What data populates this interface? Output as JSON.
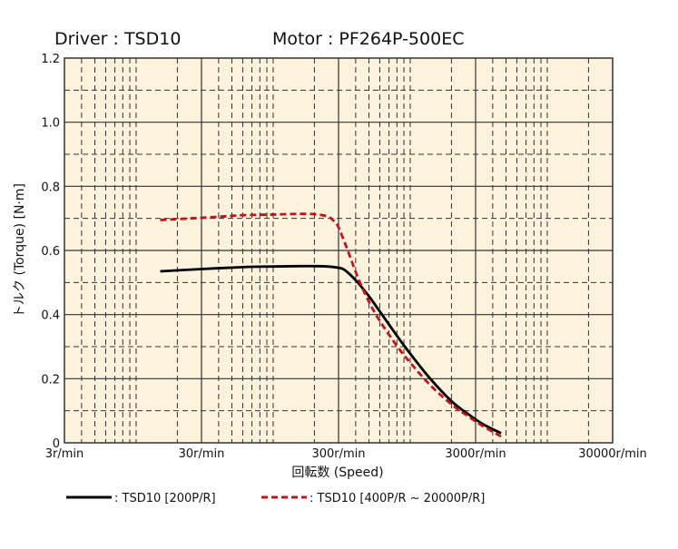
{
  "header": {
    "driver_text": "Driver : TSD10",
    "motor_text": "Motor : PF264P-500EC"
  },
  "chart_data": {
    "type": "line",
    "xscale": "log",
    "xlim": [
      3,
      30000
    ],
    "ylim": [
      0,
      1.2
    ],
    "xticks": [
      {
        "value": 3,
        "label": "3r/min"
      },
      {
        "value": 30,
        "label": "30r/min"
      },
      {
        "value": 300,
        "label": "300r/min"
      },
      {
        "value": 3000,
        "label": "3000r/min"
      },
      {
        "value": 30000,
        "label": "30000r/min"
      }
    ],
    "yticks": [
      {
        "value": 0,
        "label": "0"
      },
      {
        "value": 0.2,
        "label": "0.2"
      },
      {
        "value": 0.4,
        "label": "0.4"
      },
      {
        "value": 0.6,
        "label": "0.6"
      },
      {
        "value": 0.8,
        "label": "0.8"
      },
      {
        "value": 1.0,
        "label": "1.0"
      },
      {
        "value": 1.2,
        "label": "1.2"
      }
    ],
    "xlabel": "回転数 (Speed)",
    "ylabel": "トルク (Torque) [N·m]",
    "grid": true,
    "colors": {
      "background": "#fdf2dc",
      "grid": "#333333",
      "frame": "#333333"
    },
    "series": [
      {
        "name": ": TSD10 [200P/R]",
        "color": "#000000",
        "dash": "solid",
        "x": [
          15,
          30,
          60,
          100,
          150,
          200,
          250,
          300,
          330,
          370,
          420,
          500,
          600,
          800,
          1000,
          1400,
          2000,
          2600,
          3400,
          4600
        ],
        "y": [
          0.535,
          0.542,
          0.548,
          0.55,
          0.551,
          0.551,
          0.55,
          0.546,
          0.54,
          0.522,
          0.497,
          0.457,
          0.41,
          0.334,
          0.278,
          0.2,
          0.13,
          0.092,
          0.058,
          0.03
        ]
      },
      {
        "name": ": TSD10 [400P/R ~ 20000P/R]",
        "color": "#c0141c",
        "dash": "dashed",
        "x": [
          15,
          25,
          40,
          60,
          100,
          150,
          200,
          250,
          280,
          300,
          350,
          420,
          500,
          600,
          800,
          1000,
          1400,
          2000,
          2600,
          3400,
          4600
        ],
        "y": [
          0.695,
          0.7,
          0.705,
          0.71,
          0.712,
          0.714,
          0.713,
          0.706,
          0.69,
          0.672,
          0.6,
          0.51,
          0.44,
          0.38,
          0.302,
          0.25,
          0.18,
          0.12,
          0.085,
          0.052,
          0.02
        ]
      }
    ]
  }
}
